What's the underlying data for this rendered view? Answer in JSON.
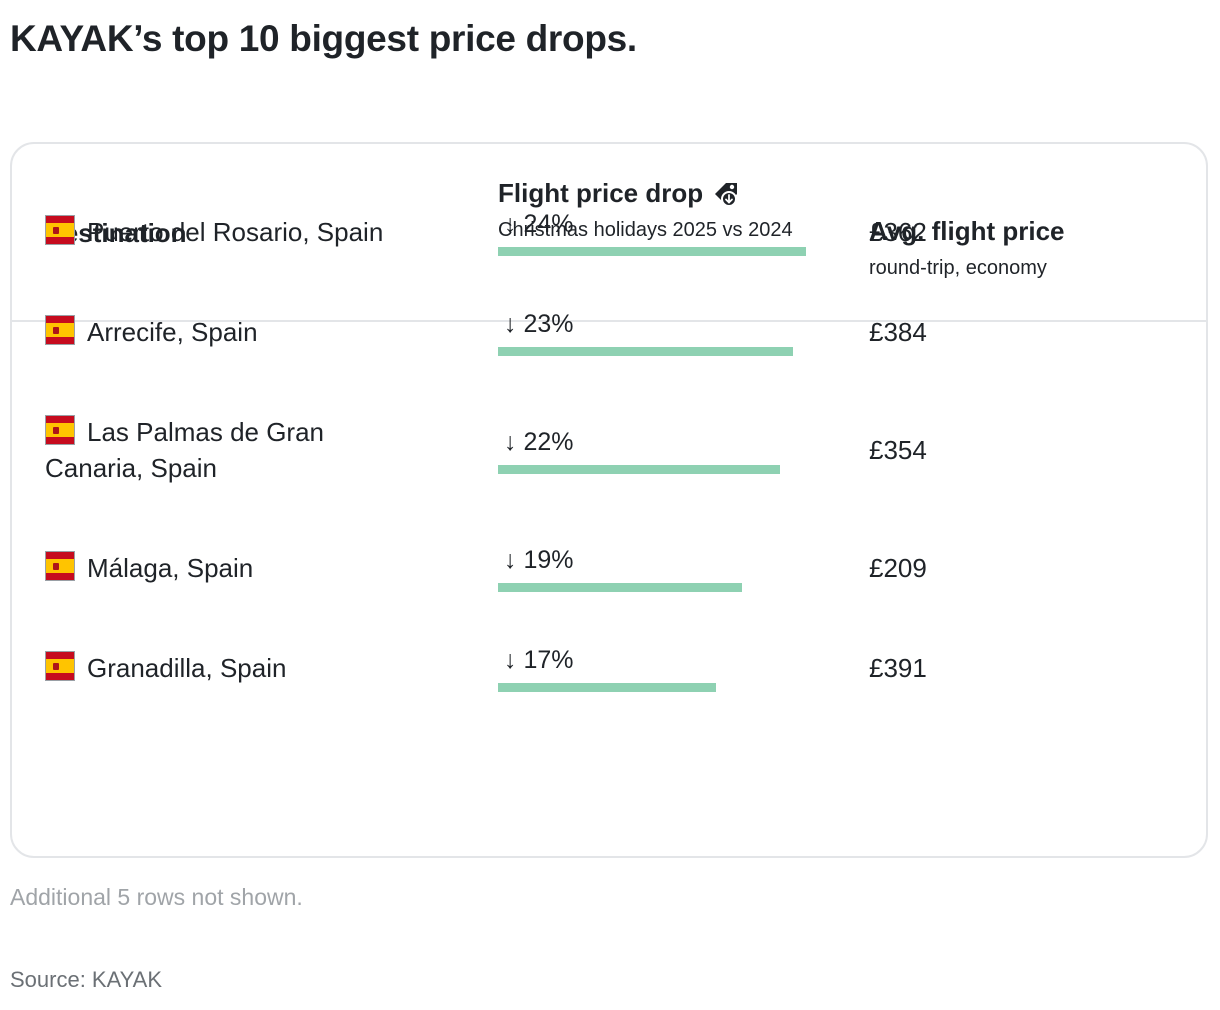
{
  "title": "KAYAK’s top 10 biggest price drops.",
  "columns": {
    "destination": "Destination",
    "drop_title": "Flight price drop",
    "drop_subtitle": "Christmas holidays 2025 vs 2024",
    "price_title": "Avg. flight price",
    "price_subtitle": "round-trip, economy"
  },
  "icons": {
    "header_icon": "price-tag-down-icon",
    "flag": "spain-flag-icon",
    "arrow": "arrow-down"
  },
  "colors": {
    "bar": "#8ed1b2",
    "border": "#e3e5e8",
    "text": "#1f2328"
  },
  "chart_data": {
    "type": "table",
    "bar_scale_max_percent": 24,
    "rows": [
      {
        "destination": "Puerto del Rosario, Spain",
        "drop_label": "↓ 24%",
        "drop_percent": 24,
        "price": "£362"
      },
      {
        "destination": "Arrecife, Spain",
        "drop_label": "↓ 23%",
        "drop_percent": 23,
        "price": "£384"
      },
      {
        "destination": "Las Palmas de Gran Canaria, Spain",
        "drop_label": "↓ 22%",
        "drop_percent": 22,
        "price": "£354"
      },
      {
        "destination": "Málaga, Spain",
        "drop_label": "↓ 19%",
        "drop_percent": 19,
        "price": "£209"
      },
      {
        "destination": "Granadilla, Spain",
        "drop_label": "↓ 17%",
        "drop_percent": 17,
        "price": "£391"
      }
    ]
  },
  "footer": {
    "note": "Additional 5 rows not shown.",
    "source": "Source: KAYAK"
  }
}
